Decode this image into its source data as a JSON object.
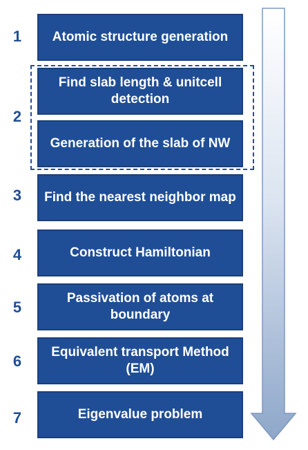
{
  "steps": [
    {
      "number": "1",
      "label": "Atomic structure generation"
    },
    {
      "number": "2",
      "label": "Find slab length & unitcell detection",
      "label_b": "Generation of the slab of NW"
    },
    {
      "number": "3",
      "label": "Find the nearest neighbor map"
    },
    {
      "number": "4",
      "label": "Construct Hamiltonian"
    },
    {
      "number": "5",
      "label": "Passivation of atoms at boundary"
    },
    {
      "number": "6",
      "label": "Equivalent transport Method (EM)"
    },
    {
      "number": "7",
      "label": "Eigenvalue problem"
    }
  ],
  "colors": {
    "box_fill": "#1f4e96",
    "number_text": "#1f4e96",
    "arrow_gradient_top": "#ffffff",
    "arrow_gradient_bottom": "#8ea7c9"
  }
}
